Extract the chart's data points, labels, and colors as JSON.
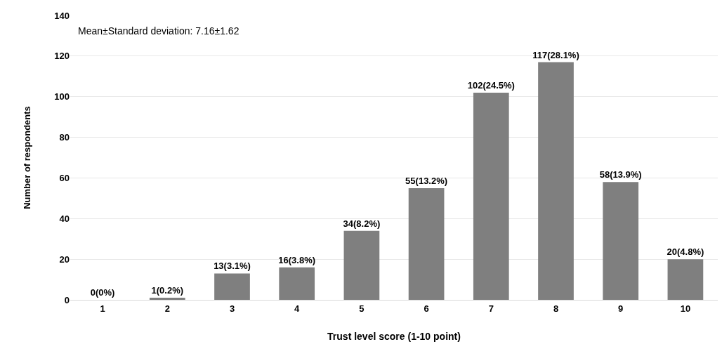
{
  "chart_data": {
    "type": "bar",
    "xlabel": "Trust level score (1-10 point)",
    "ylabel": "Number of respondents",
    "annotations": [
      "Mean±Standard deviation: 7.16±1.62"
    ],
    "categories": [
      "1",
      "2",
      "3",
      "4",
      "5",
      "6",
      "7",
      "8",
      "9",
      "10"
    ],
    "values": [
      0,
      1,
      13,
      16,
      34,
      55,
      102,
      117,
      58,
      20
    ],
    "value_labels": [
      "0(0%)",
      "1(0.2%)",
      "13(3.1%)",
      "16(3.8%)",
      "34(8.2%)",
      "55(13.2%)",
      "102(24.5%)",
      "117(28.1%)",
      "58(13.9%)",
      "20(4.8%)"
    ],
    "color": "#7f7f7f",
    "ylim": [
      0,
      140
    ],
    "yticks": [
      0,
      20,
      40,
      60,
      80,
      100,
      120,
      140
    ],
    "grid": "y",
    "legend": false
  }
}
